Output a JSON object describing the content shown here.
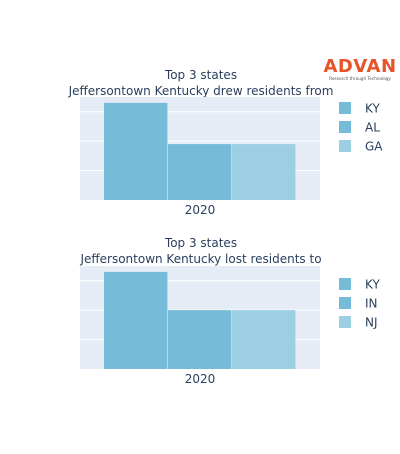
{
  "logo": {
    "brand": "ADVAN",
    "tagline": "Research through Technology",
    "color": "#e8542a"
  },
  "chart_data": [
    {
      "type": "bar",
      "title_line1": "Top 3 states",
      "title_line2": "Jeffersontown Kentucky drew residents from",
      "categories": [
        "2020"
      ],
      "series": [
        {
          "name": "KY",
          "values": [
            3.3
          ],
          "color": "#76bcd9"
        },
        {
          "name": "AL",
          "values": [
            1.9
          ],
          "color": "#76bcd9"
        },
        {
          "name": "GA",
          "values": [
            1.9
          ],
          "color": "#9dcfe3"
        }
      ],
      "ylim": [
        0,
        3.5
      ],
      "grid": true,
      "legend": "right",
      "plot_bg": "#e5ecf6"
    },
    {
      "type": "bar",
      "title_line1": "Top 3 states",
      "title_line2": "Jeffersontown Kentucky lost residents to",
      "categories": [
        "2020"
      ],
      "series": [
        {
          "name": "KY",
          "values": [
            3.3
          ],
          "color": "#76bcd9"
        },
        {
          "name": "IN",
          "values": [
            2.0
          ],
          "color": "#76bcd9"
        },
        {
          "name": "NJ",
          "values": [
            2.0
          ],
          "color": "#9dcfe3"
        }
      ],
      "ylim": [
        0,
        3.5
      ],
      "grid": true,
      "legend": "right",
      "plot_bg": "#e5ecf6"
    }
  ]
}
